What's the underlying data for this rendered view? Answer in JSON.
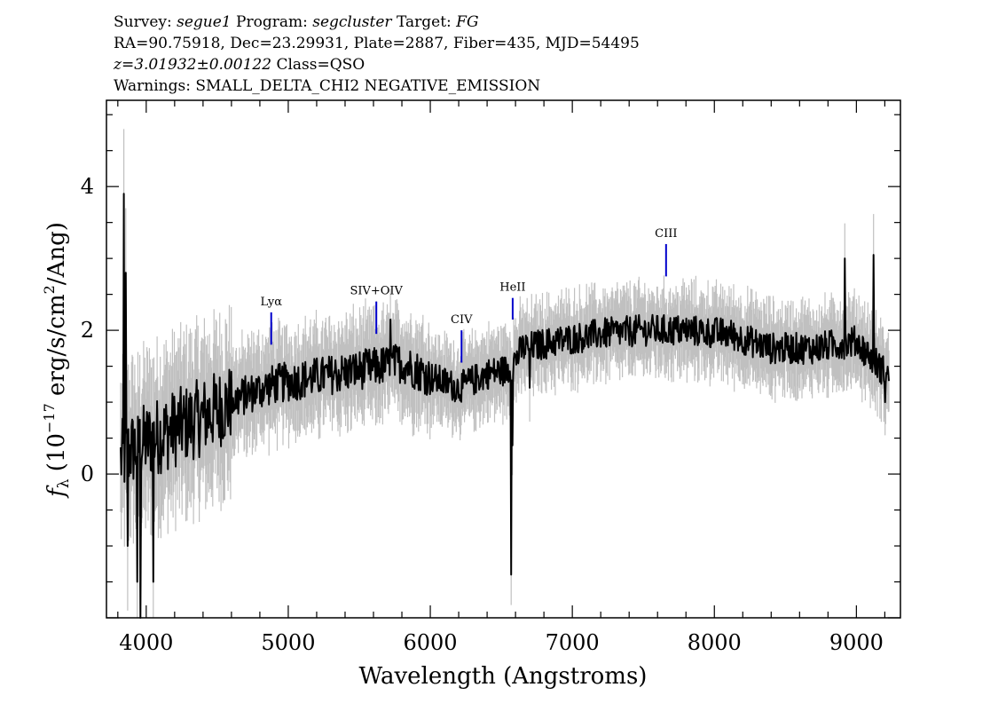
{
  "header": {
    "line1": {
      "survey_label": "Survey: ",
      "survey": "segue1",
      "program_label": " Program: ",
      "program": "segcluster",
      "target_label": " Target: ",
      "target": "FG"
    },
    "line2": "RA=90.75918, Dec=23.29931, Plate=2887, Fiber=435, MJD=54495",
    "line3": {
      "redshift": "z=3.01932±0.00122",
      "class": " Class=QSO"
    },
    "line4": "Warnings: SMALL_DELTA_CHI2 NEGATIVE_EMISSION"
  },
  "chart_data": {
    "type": "line",
    "xlabel": "Wavelength (Angstroms)",
    "ylabel_prefix": "f",
    "ylabel_sub": "λ",
    "ylabel_main": " (10",
    "ylabel_exp": "−17",
    "ylabel_units": " erg/s/cm",
    "ylabel_exp2": "2",
    "ylabel_end": "/Ang)",
    "xlim": [
      3720,
      9310
    ],
    "ylim": [
      -2.0,
      5.2
    ],
    "x_ticks": [
      4000,
      5000,
      6000,
      7000,
      8000,
      9000
    ],
    "x_tick_labels": [
      "4000",
      "5000",
      "6000",
      "7000",
      "8000",
      "9000"
    ],
    "y_ticks": [
      0,
      2,
      4
    ],
    "y_tick_labels": [
      "0",
      "2",
      "4"
    ],
    "grid": false,
    "colors": {
      "spectrum": "#000000",
      "error": "#c0c0c0",
      "line_markers": "#0000cc"
    },
    "continuum_trend": {
      "x": [
        3820,
        3900,
        4100,
        4400,
        4700,
        4900,
        5200,
        5500,
        5800,
        6000,
        6200,
        6400,
        6550,
        6650,
        6900,
        7200,
        7500,
        7800,
        8100,
        8400,
        8700,
        9000,
        9230
      ],
      "y": [
        0.2,
        0.35,
        0.55,
        0.8,
        1.1,
        1.25,
        1.35,
        1.45,
        1.55,
        1.35,
        1.2,
        1.4,
        1.45,
        1.75,
        1.85,
        1.95,
        2.0,
        2.0,
        1.95,
        1.75,
        1.75,
        1.85,
        1.35
      ]
    },
    "features": [
      {
        "x": 3842,
        "y": 3.9
      },
      {
        "x": 3858,
        "y": 2.8
      },
      {
        "x": 3870,
        "y": -1.0
      },
      {
        "x": 3935,
        "y": -1.5
      },
      {
        "x": 3960,
        "y": -2.0
      },
      {
        "x": 4050,
        "y": -1.5
      },
      {
        "x": 5720,
        "y": 2.15
      },
      {
        "x": 6570,
        "y": -1.4
      },
      {
        "x": 6580,
        "y": 0.4
      },
      {
        "x": 6700,
        "y": 1.2
      },
      {
        "x": 8920,
        "y": 3.0
      },
      {
        "x": 9120,
        "y": 3.05
      },
      {
        "x": 9200,
        "y": 1.0
      }
    ],
    "emission_lines": [
      {
        "name": "Lyα",
        "x": 4880,
        "y_top": 2.25,
        "y_bot": 1.8
      },
      {
        "name": "SIV+OIV",
        "x": 5620,
        "y_top": 2.4,
        "y_bot": 1.95
      },
      {
        "name": "CIV",
        "x": 6220,
        "y_top": 2.0,
        "y_bot": 1.55
      },
      {
        "name": "HeII",
        "x": 6580,
        "y_top": 2.45,
        "y_bot": 2.15
      },
      {
        "name": "CIII",
        "x": 7660,
        "y_top": 3.2,
        "y_bot": 2.75
      }
    ]
  }
}
